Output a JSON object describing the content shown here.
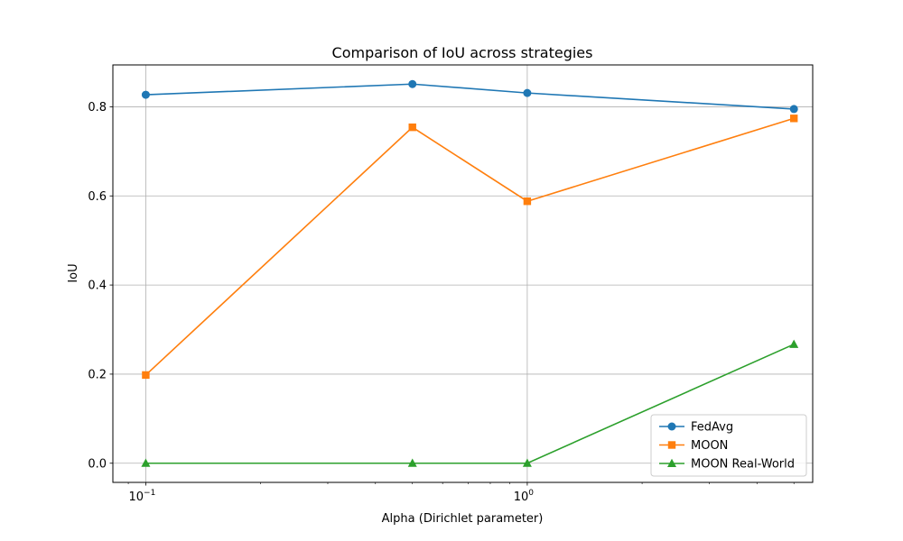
{
  "chart_data": {
    "type": "line",
    "title": "Comparison of IoU across strategies",
    "xlabel": "Alpha (Dirichlet parameter)",
    "ylabel": "IoU",
    "x_scale": "log",
    "x": [
      0.1,
      0.5,
      1.0,
      5.0
    ],
    "xlim": [
      0.082,
      5.6
    ],
    "ylim": [
      -0.043,
      0.894
    ],
    "x_major_ticks": [
      {
        "value": 0.1,
        "base": "10",
        "exp": "−1"
      },
      {
        "value": 1.0,
        "base": "10",
        "exp": "0"
      }
    ],
    "y_ticks": [
      {
        "value": 0.0,
        "label": "0.0"
      },
      {
        "value": 0.2,
        "label": "0.2"
      },
      {
        "value": 0.4,
        "label": "0.4"
      },
      {
        "value": 0.6,
        "label": "0.6"
      },
      {
        "value": 0.8,
        "label": "0.8"
      }
    ],
    "grid": true,
    "legend_position": "lower right",
    "series": [
      {
        "name": "FedAvg",
        "values": [
          0.827,
          0.851,
          0.831,
          0.795
        ],
        "color": "#1f77b4",
        "marker": "circle"
      },
      {
        "name": "MOON",
        "values": [
          0.198,
          0.754,
          0.588,
          0.774
        ],
        "color": "#ff7f0e",
        "marker": "square"
      },
      {
        "name": "MOON Real-World",
        "values": [
          0.0,
          0.0,
          0.0,
          0.267
        ],
        "color": "#2ca02c",
        "marker": "triangle"
      }
    ]
  }
}
